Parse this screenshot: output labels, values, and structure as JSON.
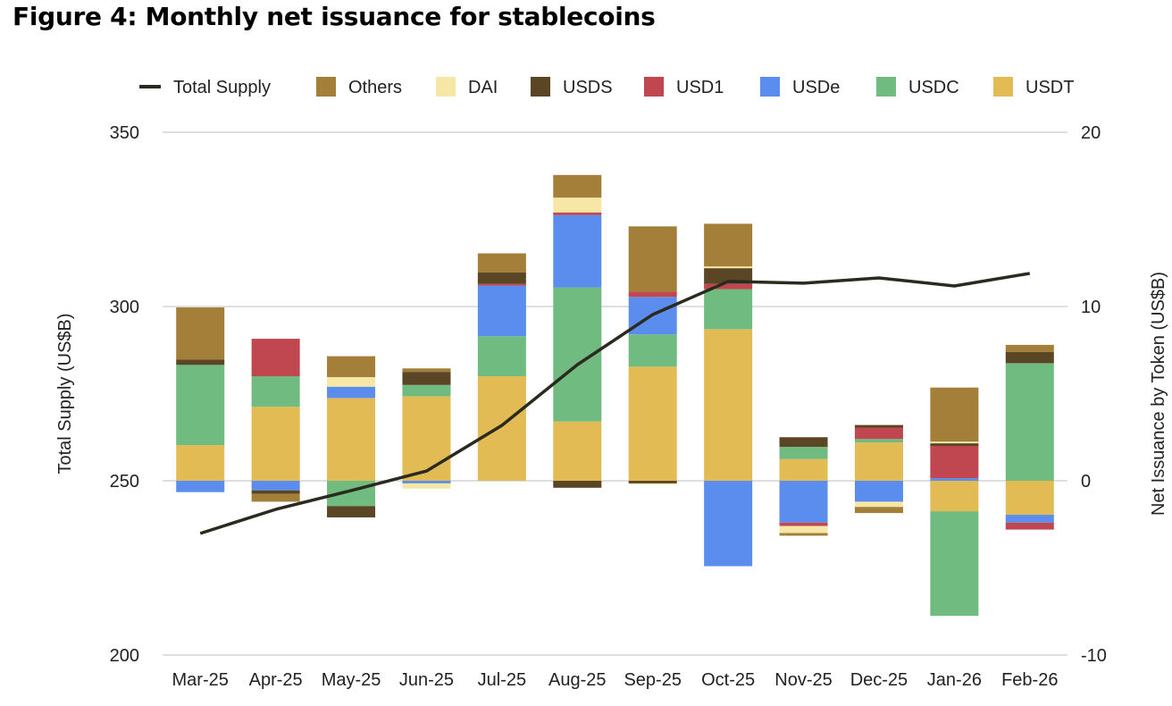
{
  "chart_data": {
    "type": "bar",
    "title": "Figure 4: Monthly net issuance for stablecoins",
    "ylabel_left": "Total Supply (US$B)",
    "ylabel_right": "Net Issuance by Token (US$B)",
    "ylim_left": [
      200,
      350
    ],
    "yticks_left": [
      200,
      250,
      300,
      350
    ],
    "ylim_right": [
      -10,
      20
    ],
    "yticks_right": [
      -10,
      0,
      10,
      20
    ],
    "grid": true,
    "stacked": true,
    "legend_position": "top",
    "categories": [
      "Mar-25",
      "Apr-25",
      "May-25",
      "Jun-25",
      "Jul-25",
      "Aug-25",
      "Sep-25",
      "Oct-25",
      "Nov-25",
      "Dec-25",
      "Jan-26",
      "Feb-26"
    ],
    "line_series": {
      "name": "Total Supply",
      "axis": "left",
      "color": "#2b2a1e",
      "values": [
        234.9,
        241.8,
        247.2,
        252.8,
        265.9,
        283.3,
        297.7,
        307.2,
        306.7,
        308.2,
        305.9,
        309.5
      ]
    },
    "series": [
      {
        "name": "USDT",
        "color": "#e2bb55",
        "values": [
          2.05,
          4.25,
          4.75,
          4.85,
          6.0,
          3.4,
          6.55,
          8.7,
          1.25,
          2.2,
          -1.75,
          -1.95
        ]
      },
      {
        "name": "USDC",
        "color": "#70bb80",
        "values": [
          4.6,
          1.75,
          -1.45,
          0.65,
          2.3,
          7.7,
          1.85,
          2.3,
          0.7,
          0.2,
          -6.0,
          6.75
        ]
      },
      {
        "name": "USDe",
        "color": "#5b8def",
        "values": [
          -0.65,
          -0.55,
          0.65,
          -0.15,
          2.9,
          4.15,
          2.15,
          -4.9,
          -2.4,
          -1.2,
          0.15,
          -0.45
        ]
      },
      {
        "name": "USD1",
        "color": "#c0474f",
        "values": [
          0,
          2.15,
          0,
          0,
          0.1,
          0.15,
          0.3,
          0.3,
          -0.2,
          0.65,
          1.85,
          -0.4
        ]
      },
      {
        "name": "USDS",
        "color": "#5a4524",
        "values": [
          0.3,
          -0.2,
          -0.65,
          0.75,
          0.65,
          -0.4,
          -0.15,
          0.9,
          0.55,
          0.15,
          0.15,
          0.65
        ]
      },
      {
        "name": "DAI",
        "color": "#f7e7a6",
        "values": [
          0,
          0,
          0.55,
          -0.3,
          0,
          0.85,
          -0.05,
          0.1,
          -0.4,
          -0.3,
          0.1,
          0
        ]
      },
      {
        "name": "Others",
        "color": "#a47f3a",
        "values": [
          3.0,
          -0.45,
          1.2,
          0.2,
          1.1,
          1.3,
          3.75,
          2.45,
          -0.15,
          -0.35,
          3.1,
          0.4
        ]
      }
    ],
    "legend_order": [
      "Total Supply",
      "Others",
      "DAI",
      "USDS",
      "USD1",
      "USDe",
      "USDC",
      "USDT"
    ]
  }
}
